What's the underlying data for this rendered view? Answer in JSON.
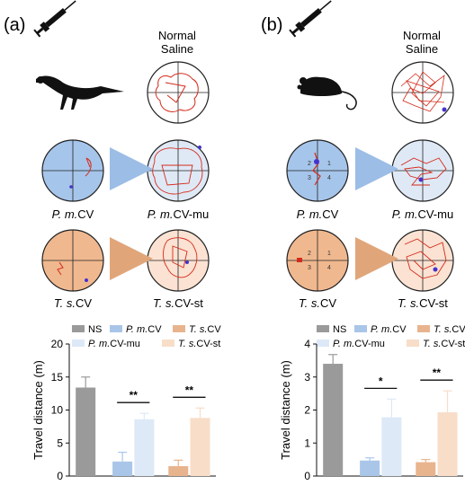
{
  "panels": [
    {
      "id": "a",
      "label": "(a)",
      "control_title": [
        "Normal",
        "Saline"
      ],
      "row1_caption": {
        "italic": "P. m.",
        "suffix": "CV"
      },
      "row1_mut_caption": {
        "italic": "P. m.",
        "suffix": "CV-mu"
      },
      "row2_caption": {
        "italic": "T. s.",
        "suffix": "CV"
      },
      "row2_mut_caption": {
        "italic": "T. s.",
        "suffix": "CV-st"
      },
      "animal_icon": "bird-silhouette-icon"
    },
    {
      "id": "b",
      "label": "(b)",
      "control_title": [
        "Normal",
        "Saline"
      ],
      "row1_caption": {
        "italic": "P. m.",
        "suffix": "CV"
      },
      "row1_mut_caption": {
        "italic": "P. m.",
        "suffix": "CV-mu"
      },
      "row2_caption": {
        "italic": "T. s.",
        "suffix": "CV"
      },
      "row2_mut_caption": {
        "italic": "T. s.",
        "suffix": "CV-st"
      },
      "animal_icon": "mouse-silhouette-icon"
    }
  ],
  "colors": {
    "NS": "#9a9a9a",
    "PmCV": "#a9c6e8",
    "TsCV": "#e8b48e",
    "PmCVmu": "#dde9f7",
    "TsCVst": "#f8ddc8",
    "arena_blue": "#a6c5ea",
    "arena_orange": "#f0b88f",
    "arena_light_blue": "#dfe9f6",
    "arena_light_orange": "#fbe2d2",
    "track": "#d42a1a",
    "point": "#4433cc"
  },
  "chart_data": [
    {
      "type": "bar",
      "panel": "a",
      "ylabel": "Travel distance (m)",
      "ylim": [
        0,
        20
      ],
      "yticks": [
        "0",
        "5",
        "10",
        "15",
        "20"
      ],
      "legend": [
        {
          "key": "NS",
          "label": "NS",
          "italic": "",
          "suffix": "NS"
        },
        {
          "key": "PmCV",
          "italic": "P. m.",
          "suffix": "CV"
        },
        {
          "key": "TsCV",
          "italic": "T. s.",
          "suffix": "CV"
        },
        {
          "key": "PmCVmu",
          "italic": "P. m.",
          "suffix": "CV-mu"
        },
        {
          "key": "TsCVst",
          "italic": "T. s.",
          "suffix": "CV-st"
        }
      ],
      "series": [
        {
          "key": "NS",
          "value": 13.4,
          "err": 1.6
        },
        {
          "key": "PmCV",
          "value": 2.2,
          "err": 1.4
        },
        {
          "key": "PmCVmu",
          "value": 8.6,
          "err": 0.9
        },
        {
          "key": "TsCV",
          "value": 1.5,
          "err": 0.9
        },
        {
          "key": "TsCVst",
          "value": 8.8,
          "err": 1.5
        }
      ],
      "significance": [
        {
          "from": "PmCV",
          "to": "PmCVmu",
          "label": "**"
        },
        {
          "from": "TsCV",
          "to": "TsCVst",
          "label": "**"
        }
      ]
    },
    {
      "type": "bar",
      "panel": "b",
      "ylabel": "Travel distance (m)",
      "ylim": [
        0,
        4
      ],
      "yticks": [
        "0",
        "1",
        "2",
        "3",
        "4"
      ],
      "legend": [
        {
          "key": "NS",
          "italic": "",
          "suffix": "NS"
        },
        {
          "key": "PmCV",
          "italic": "P. m.",
          "suffix": "CV"
        },
        {
          "key": "TsCV",
          "italic": "T. s.",
          "suffix": "CV"
        },
        {
          "key": "PmCVmu",
          "italic": "P. m.",
          "suffix": "CV-mu"
        },
        {
          "key": "TsCVst",
          "italic": "T. s.",
          "suffix": "CV-st"
        }
      ],
      "series": [
        {
          "key": "NS",
          "value": 3.4,
          "err": 0.28
        },
        {
          "key": "PmCV",
          "value": 0.47,
          "err": 0.08
        },
        {
          "key": "PmCVmu",
          "value": 1.78,
          "err": 0.55
        },
        {
          "key": "TsCV",
          "value": 0.42,
          "err": 0.08
        },
        {
          "key": "TsCVst",
          "value": 1.93,
          "err": 0.65
        }
      ],
      "significance": [
        {
          "from": "PmCV",
          "to": "PmCVmu",
          "label": "*"
        },
        {
          "from": "TsCV",
          "to": "TsCVst",
          "label": "**"
        }
      ]
    }
  ]
}
